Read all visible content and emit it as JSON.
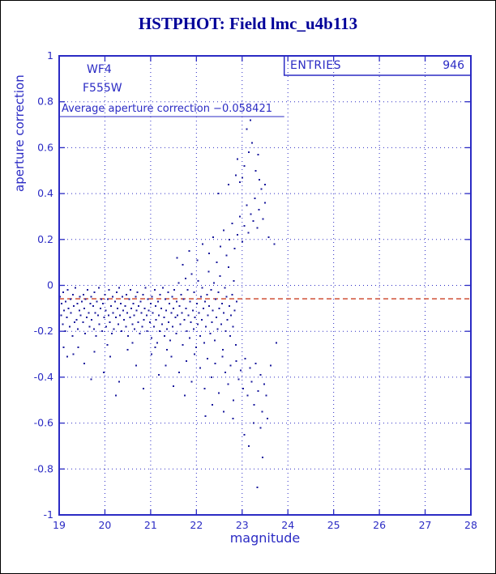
{
  "page": {
    "title": "HSTPHOT: Field lmc_u4b113"
  },
  "chart_data": {
    "type": "scatter",
    "title": "HSTPHOT: Field lmc_u4b113",
    "xlabel": "magnitude",
    "ylabel": "aperture correction",
    "xlim": [
      19,
      28
    ],
    "ylim": [
      -1,
      1
    ],
    "x_ticks": [
      19,
      20,
      21,
      22,
      23,
      24,
      25,
      26,
      27,
      28
    ],
    "y_ticks": [
      -1,
      -0.8,
      -0.6,
      -0.4,
      -0.2,
      0,
      0.2,
      0.4,
      0.6,
      0.8,
      1
    ],
    "grid": true,
    "legend": "none",
    "stats_box": {
      "label": "ENTRIES",
      "value": "946"
    },
    "annotations": {
      "detector": "WF4",
      "filter": "F555W",
      "average_text": "Average aperture correction −0.058421",
      "average_value": -0.058421
    },
    "reference_line": {
      "y": -0.058421,
      "style": "dashed"
    },
    "colors": {
      "axis": "#2b2bc4",
      "title": "#000099",
      "marker": "#1a1a9c",
      "reference_line": "#cc4125",
      "page_border": "#000000",
      "background": "#ffffff"
    },
    "points": [
      [
        19.02,
        -0.05
      ],
      [
        19.04,
        -0.13
      ],
      [
        19.05,
        -0.08
      ],
      [
        19.08,
        -0.17
      ],
      [
        19.09,
        -0.03
      ],
      [
        19.11,
        -0.11
      ],
      [
        19.13,
        -0.2
      ],
      [
        19.14,
        -0.07
      ],
      [
        19.17,
        -0.14
      ],
      [
        19.19,
        -0.02
      ],
      [
        19.2,
        -0.1
      ],
      [
        19.23,
        -0.18
      ],
      [
        19.25,
        -0.06
      ],
      [
        19.26,
        -0.12
      ],
      [
        19.29,
        -0.22
      ],
      [
        19.3,
        -0.04
      ],
      [
        19.32,
        -0.09
      ],
      [
        19.34,
        -0.16
      ],
      [
        19.35,
        -0.01
      ],
      [
        19.38,
        -0.15
      ],
      [
        19.4,
        -0.08
      ],
      [
        19.41,
        -0.19
      ],
      [
        19.44,
        -0.11
      ],
      [
        19.45,
        -0.05
      ],
      [
        19.47,
        -0.13
      ],
      [
        19.5,
        -0.07
      ],
      [
        19.52,
        -0.16
      ],
      [
        19.53,
        -0.04
      ],
      [
        19.55,
        -0.1
      ],
      [
        19.57,
        -0.21
      ],
      [
        19.58,
        -0.06
      ],
      [
        19.6,
        -0.14
      ],
      [
        19.62,
        -0.02
      ],
      [
        19.65,
        -0.12
      ],
      [
        19.66,
        -0.18
      ],
      [
        19.68,
        -0.08
      ],
      [
        19.7,
        -0.05
      ],
      [
        19.71,
        -0.15
      ],
      [
        19.74,
        -0.09
      ],
      [
        19.76,
        -0.19
      ],
      [
        19.77,
        -0.03
      ],
      [
        19.79,
        -0.12
      ],
      [
        19.81,
        -0.22
      ],
      [
        19.82,
        -0.07
      ],
      [
        19.85,
        -0.13
      ],
      [
        19.87,
        -0.01
      ],
      [
        19.88,
        -0.17
      ],
      [
        19.9,
        -0.1
      ],
      [
        19.92,
        -0.06
      ],
      [
        19.94,
        -0.2
      ],
      [
        19.96,
        -0.08
      ],
      [
        19.98,
        -0.14
      ],
      [
        20.0,
        -0.04
      ],
      [
        20.02,
        -0.11
      ],
      [
        20.03,
        -0.18
      ],
      [
        20.06,
        -0.06
      ],
      [
        20.08,
        -0.13
      ],
      [
        20.09,
        -0.02
      ],
      [
        20.11,
        -0.16
      ],
      [
        20.13,
        -0.09
      ],
      [
        20.15,
        -0.21
      ],
      [
        20.17,
        -0.05
      ],
      [
        20.18,
        -0.12
      ],
      [
        20.2,
        -0.19
      ],
      [
        20.22,
        -0.07
      ],
      [
        20.24,
        -0.14
      ],
      [
        20.26,
        -0.03
      ],
      [
        20.28,
        -0.1
      ],
      [
        20.29,
        -0.17
      ],
      [
        20.31,
        -0.01
      ],
      [
        20.33,
        -0.13
      ],
      [
        20.35,
        -0.08
      ],
      [
        20.36,
        -0.2
      ],
      [
        20.38,
        -0.05
      ],
      [
        20.4,
        -0.11
      ],
      [
        20.42,
        -0.15
      ],
      [
        20.44,
        -0.09
      ],
      [
        20.46,
        -0.18
      ],
      [
        20.47,
        -0.04
      ],
      [
        20.49,
        -0.12
      ],
      [
        20.51,
        -0.22
      ],
      [
        20.53,
        -0.06
      ],
      [
        20.55,
        -0.14
      ],
      [
        20.56,
        -0.02
      ],
      [
        20.58,
        -0.1
      ],
      [
        20.6,
        -0.17
      ],
      [
        20.62,
        -0.08
      ],
      [
        20.64,
        -0.13
      ],
      [
        20.65,
        -0.19
      ],
      [
        20.67,
        -0.05
      ],
      [
        20.69,
        -0.11
      ],
      [
        20.71,
        -0.03
      ],
      [
        20.73,
        -0.16
      ],
      [
        20.74,
        -0.09
      ],
      [
        20.76,
        -0.21
      ],
      [
        20.78,
        -0.07
      ],
      [
        20.8,
        -0.12
      ],
      [
        20.82,
        -0.18
      ],
      [
        20.83,
        -0.04
      ],
      [
        20.85,
        -0.15
      ],
      [
        20.87,
        -0.1
      ],
      [
        20.89,
        -0.01
      ],
      [
        20.91,
        -0.13
      ],
      [
        20.92,
        -0.2
      ],
      [
        20.94,
        -0.06
      ],
      [
        20.96,
        -0.11
      ],
      [
        20.98,
        -0.16
      ],
      [
        21.0,
        -0.08
      ],
      [
        21.02,
        -0.23
      ],
      [
        21.03,
        -0.05
      ],
      [
        21.05,
        -0.12
      ],
      [
        21.07,
        -0.18
      ],
      [
        21.09,
        -0.02
      ],
      [
        21.11,
        -0.09
      ],
      [
        21.12,
        -0.15
      ],
      [
        21.14,
        -0.25
      ],
      [
        21.16,
        -0.07
      ],
      [
        21.18,
        -0.13
      ],
      [
        21.2,
        -0.2
      ],
      [
        21.21,
        -0.04
      ],
      [
        21.23,
        -0.1
      ],
      [
        21.25,
        -0.17
      ],
      [
        21.27,
        -0.01
      ],
      [
        21.29,
        -0.14
      ],
      [
        21.3,
        -0.22
      ],
      [
        21.32,
        -0.06
      ],
      [
        21.34,
        -0.11
      ],
      [
        21.36,
        -0.19
      ],
      [
        21.38,
        -0.03
      ],
      [
        21.39,
        -0.16
      ],
      [
        21.41,
        -0.08
      ],
      [
        21.43,
        -0.24
      ],
      [
        21.45,
        -0.12
      ],
      [
        21.47,
        -0.05
      ],
      [
        21.48,
        -0.18
      ],
      [
        21.5,
        -0.1
      ],
      [
        21.52,
        -0.02
      ],
      [
        21.54,
        -0.14
      ],
      [
        21.56,
        -0.21
      ],
      [
        21.57,
        -0.07
      ],
      [
        21.59,
        -0.13
      ],
      [
        21.61,
        0.01
      ],
      [
        21.63,
        -0.09
      ],
      [
        21.65,
        -0.17
      ],
      [
        21.67,
        -0.04
      ],
      [
        21.68,
        -0.12
      ],
      [
        21.7,
        -0.26
      ],
      [
        21.72,
        -0.06
      ],
      [
        21.74,
        -0.15
      ],
      [
        21.76,
        0.03
      ],
      [
        21.77,
        -0.1
      ],
      [
        21.79,
        -0.2
      ],
      [
        21.81,
        -0.02
      ],
      [
        21.83,
        -0.13
      ],
      [
        21.85,
        -0.23
      ],
      [
        21.86,
        -0.07
      ],
      [
        21.88,
        -0.16
      ],
      [
        21.9,
        0.05
      ],
      [
        21.92,
        -0.11
      ],
      [
        21.94,
        -0.19
      ],
      [
        21.95,
        -0.03
      ],
      [
        21.97,
        -0.14
      ],
      [
        21.99,
        -0.27
      ],
      [
        22.01,
        -0.08
      ],
      [
        22.03,
        -0.17
      ],
      [
        22.04,
        0.02
      ],
      [
        22.06,
        -0.12
      ],
      [
        22.08,
        -0.22
      ],
      [
        22.1,
        -0.05
      ],
      [
        22.12,
        -0.15
      ],
      [
        22.13,
        -0.01
      ],
      [
        22.15,
        -0.1
      ],
      [
        22.17,
        -0.25
      ],
      [
        22.19,
        -0.07
      ],
      [
        22.21,
        -0.18
      ],
      [
        22.23,
        -0.04
      ],
      [
        22.25,
        -0.13
      ],
      [
        22.27,
        0.06
      ],
      [
        22.28,
        -0.09
      ],
      [
        22.3,
        -0.21
      ],
      [
        22.32,
        -0.02
      ],
      [
        22.34,
        -0.16
      ],
      [
        22.36,
        -0.11
      ],
      [
        22.38,
        0.01
      ],
      [
        22.4,
        -0.24
      ],
      [
        22.42,
        -0.06
      ],
      [
        22.44,
        -0.14
      ],
      [
        22.46,
        -0.19
      ],
      [
        22.48,
        -0.03
      ],
      [
        22.5,
        -0.1
      ],
      [
        22.52,
        0.04
      ],
      [
        22.54,
        -0.17
      ],
      [
        22.56,
        -0.08
      ],
      [
        22.58,
        -0.28
      ],
      [
        22.6,
        -0.12
      ],
      [
        22.62,
        -0.01
      ],
      [
        22.64,
        -0.2
      ],
      [
        22.66,
        -0.05
      ],
      [
        22.68,
        -0.15
      ],
      [
        22.7,
        0.08
      ],
      [
        22.72,
        -0.09
      ],
      [
        22.74,
        -0.22
      ],
      [
        22.76,
        -0.13
      ],
      [
        22.78,
        -0.04
      ],
      [
        22.8,
        -0.18
      ],
      [
        22.82,
        0.02
      ],
      [
        22.84,
        -0.11
      ],
      [
        22.86,
        -0.26
      ],
      [
        22.88,
        -0.07
      ],
      [
        19.1,
        -0.27
      ],
      [
        19.18,
        -0.31
      ],
      [
        19.31,
        -0.3
      ],
      [
        19.42,
        -0.27
      ],
      [
        19.55,
        -0.34
      ],
      [
        19.7,
        -0.41
      ],
      [
        19.77,
        -0.29
      ],
      [
        19.97,
        -0.38
      ],
      [
        20.05,
        -0.26
      ],
      [
        20.12,
        -0.31
      ],
      [
        20.24,
        -0.48
      ],
      [
        20.31,
        -0.42
      ],
      [
        20.5,
        -0.28
      ],
      [
        20.6,
        -0.25
      ],
      [
        20.68,
        -0.35
      ],
      [
        20.84,
        -0.45
      ],
      [
        21.02,
        -0.3
      ],
      [
        21.1,
        -0.27
      ],
      [
        21.18,
        -0.39
      ],
      [
        21.36,
        -0.28
      ],
      [
        21.33,
        -0.35
      ],
      [
        21.45,
        -0.31
      ],
      [
        21.58,
        0.12
      ],
      [
        21.62,
        -0.38
      ],
      [
        21.7,
        0.09
      ],
      [
        21.78,
        -0.33
      ],
      [
        21.84,
        0.15
      ],
      [
        21.9,
        -0.42
      ],
      [
        21.96,
        -0.3
      ],
      [
        22.02,
        0.11
      ],
      [
        22.08,
        -0.36
      ],
      [
        22.14,
        0.18
      ],
      [
        22.18,
        -0.45
      ],
      [
        22.24,
        -0.32
      ],
      [
        22.28,
        0.14
      ],
      [
        22.33,
        -0.4
      ],
      [
        22.37,
        0.21
      ],
      [
        22.41,
        -0.34
      ],
      [
        22.45,
        0.1
      ],
      [
        22.49,
        -0.47
      ],
      [
        22.53,
        0.17
      ],
      [
        22.57,
        -0.31
      ],
      [
        22.6,
        0.24
      ],
      [
        22.63,
        -0.38
      ],
      [
        22.66,
        0.13
      ],
      [
        22.69,
        -0.43
      ],
      [
        22.72,
        0.2
      ],
      [
        22.75,
        -0.35
      ],
      [
        22.78,
        0.27
      ],
      [
        22.81,
        -0.5
      ],
      [
        22.84,
        0.16
      ],
      [
        22.87,
        -0.33
      ],
      [
        22.9,
        0.22
      ],
      [
        22.92,
        -0.41
      ],
      [
        22.95,
        0.3
      ],
      [
        22.97,
        -0.37
      ],
      [
        23.0,
        0.19
      ],
      [
        23.02,
        -0.45
      ],
      [
        23.05,
        0.26
      ],
      [
        23.07,
        -0.32
      ],
      [
        23.1,
        0.35
      ],
      [
        23.12,
        -0.48
      ],
      [
        23.14,
        0.23
      ],
      [
        23.17,
        -0.36
      ],
      [
        23.19,
        0.31
      ],
      [
        23.21,
        -0.42
      ],
      [
        23.24,
        0.28
      ],
      [
        23.26,
        -0.52
      ],
      [
        23.28,
        0.38
      ],
      [
        23.3,
        -0.34
      ],
      [
        23.33,
        0.25
      ],
      [
        23.35,
        -0.46
      ],
      [
        23.37,
        0.33
      ],
      [
        23.4,
        -0.39
      ],
      [
        23.42,
        0.42
      ],
      [
        23.44,
        -0.55
      ],
      [
        23.46,
        0.29
      ],
      [
        23.48,
        -0.43
      ],
      [
        23.5,
        0.36
      ],
      [
        23.53,
        -0.48
      ],
      [
        23.58,
        0.21
      ],
      [
        23.62,
        -0.35
      ],
      [
        23.7,
        0.18
      ],
      [
        23.75,
        -0.25
      ],
      [
        22.86,
        0.48
      ],
      [
        23.05,
        0.52
      ],
      [
        23.15,
        0.58
      ],
      [
        22.95,
        0.45
      ],
      [
        23.22,
        0.62
      ],
      [
        23.1,
        0.68
      ],
      [
        23.18,
        0.72
      ],
      [
        22.9,
        0.55
      ],
      [
        23.3,
        0.5
      ],
      [
        23.35,
        0.57
      ],
      [
        22.7,
        0.44
      ],
      [
        23.0,
        0.47
      ],
      [
        23.25,
        -0.6
      ],
      [
        22.8,
        -0.58
      ],
      [
        23.05,
        -0.65
      ],
      [
        23.4,
        -0.62
      ],
      [
        22.6,
        -0.55
      ],
      [
        23.15,
        -0.7
      ],
      [
        23.45,
        -0.75
      ],
      [
        22.35,
        -0.52
      ],
      [
        23.33,
        -0.88
      ],
      [
        22.2,
        -0.57
      ],
      [
        21.75,
        -0.48
      ],
      [
        21.5,
        -0.44
      ],
      [
        23.5,
        0.44
      ],
      [
        23.55,
        -0.58
      ],
      [
        22.48,
        0.4
      ],
      [
        23.38,
        0.46
      ]
    ]
  }
}
